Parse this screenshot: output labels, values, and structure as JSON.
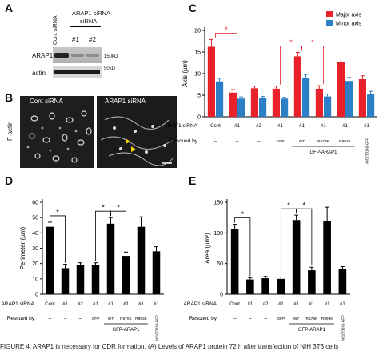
{
  "panels": {
    "A": "A",
    "B": "B",
    "C": "C",
    "D": "D",
    "E": "E"
  },
  "blot": {
    "cont_siRNA": "Cont siRNA",
    "arap1_siRNA": "ARAP1 siRNA",
    "lane_1": "#1",
    "lane_2": "#2",
    "row_arap1": "ARAP1",
    "row_actin": "actin",
    "marker_150": "150kD",
    "marker_50": "50kD"
  },
  "micro": {
    "cont_label": "Cont siRNA",
    "arap1_label": "ARAP1 siRNA",
    "factin_label": "F-actin"
  },
  "shared": {
    "arap1_sirna_row": "ARAP1 siRNA",
    "rescued_by_row": "Rescued by",
    "gfp_arap1": "GFP-ARAP1",
    "sirna_values": [
      "Cont",
      "#1",
      "#2",
      "#1",
      "#1",
      "#1",
      "#1",
      "#1"
    ],
    "rescue_values": [
      "–",
      "–",
      "–",
      "GFP",
      "WT",
      "R578K",
      "R993K",
      "Arf1(T31N)-GFP"
    ]
  },
  "chart_data": [
    {
      "panel": "C",
      "type": "bar",
      "ylabel": "Axis (µm)",
      "ylim": [
        0,
        20
      ],
      "yticks": [
        0,
        5,
        10,
        15,
        20
      ],
      "series": [
        {
          "name": "Major axis",
          "color": "#e8212a",
          "values": [
            16.2,
            5.6,
            6.6,
            6.5,
            14.0,
            6.5,
            12.7,
            8.7
          ],
          "errors": [
            1.7,
            0.7,
            0.5,
            0.6,
            0.9,
            0.7,
            0.9,
            0.8
          ]
        },
        {
          "name": "Minor axis",
          "color": "#2c7fc5",
          "values": [
            8.2,
            4.2,
            4.3,
            4.2,
            8.9,
            4.7,
            8.3,
            5.3
          ],
          "errors": [
            0.7,
            0.4,
            0.4,
            0.3,
            0.9,
            0.6,
            0.8,
            0.6
          ]
        }
      ],
      "significance": [
        "*",
        "*",
        "*"
      ],
      "legend": "top-right"
    },
    {
      "panel": "D",
      "type": "bar",
      "ylabel": "Perimeter (µm)",
      "ylim": [
        0,
        60
      ],
      "yticks": [
        0,
        10,
        20,
        30,
        40,
        50,
        60
      ],
      "series": [
        {
          "name": "",
          "color": "#000000",
          "values": [
            44,
            17,
            19,
            19,
            46,
            25,
            44,
            28
          ],
          "errors": [
            3,
            2.5,
            1.5,
            1.5,
            4,
            2.5,
            6.5,
            3
          ]
        }
      ],
      "significance": [
        "*",
        "*",
        "*"
      ]
    },
    {
      "panel": "E",
      "type": "bar",
      "ylabel": "Area (µm²)",
      "ylim": [
        0,
        150
      ],
      "yticks": [
        0,
        50,
        100,
        150
      ],
      "series": [
        {
          "name": "",
          "color": "#000000",
          "values": [
            106,
            24,
            26,
            25,
            121,
            39,
            120,
            41
          ],
          "errors": [
            8,
            3,
            3,
            3,
            8,
            5,
            22,
            4
          ]
        }
      ],
      "significance": [
        "*",
        "*",
        "*"
      ]
    }
  ],
  "caption": "FIGURE 4: ARAP1 is necessary for CDR formation. (A) Levels of ARAP1 protein 72 h after transfection of NIH 3T3 cells"
}
